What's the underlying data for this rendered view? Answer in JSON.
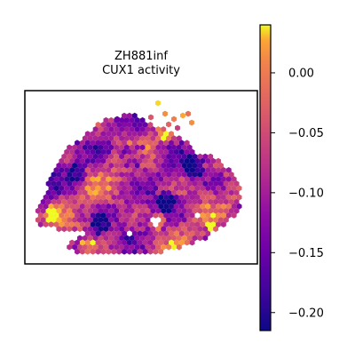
{
  "chart_data": {
    "type": "heatmap",
    "subtype": "hexbin-spatial",
    "title_lines": [
      "ZH881inf",
      "CUX1 activity"
    ],
    "xlabel": "",
    "ylabel": "",
    "colormap": "plasma",
    "colorbar": {
      "range": [
        -0.215,
        0.04
      ],
      "ticks": [
        0.0,
        -0.05,
        -0.1,
        -0.15,
        -0.2
      ],
      "tick_labels": [
        "0.00",
        "−0.05",
        "−0.10",
        "−0.15",
        "−0.20"
      ]
    },
    "grid": false,
    "legend": "none"
  }
}
